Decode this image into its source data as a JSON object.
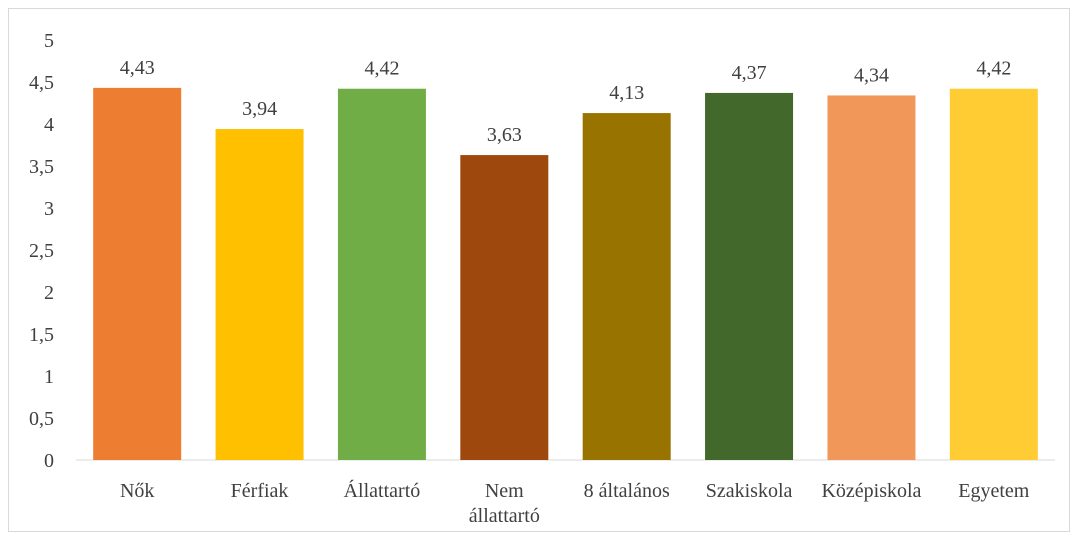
{
  "chart_data": {
    "type": "bar",
    "title": "",
    "xlabel": "",
    "ylabel": "",
    "ylim": [
      0,
      5
    ],
    "yticks": [
      "0",
      "0,5",
      "1",
      "1,5",
      "2",
      "2,5",
      "3",
      "3,5",
      "4",
      "4,5",
      "5"
    ],
    "grid": false,
    "legend": "none",
    "categories": [
      [
        "Nők"
      ],
      [
        "Férfiak"
      ],
      [
        "Állattartó"
      ],
      [
        "Nem",
        "állattartó"
      ],
      [
        "8 általános"
      ],
      [
        "Szakiskola"
      ],
      [
        "Középiskola"
      ],
      [
        "Egyetem"
      ]
    ],
    "values": [
      4.43,
      3.94,
      4.42,
      3.63,
      4.13,
      4.37,
      4.34,
      4.42
    ],
    "value_labels": [
      "4,43",
      "3,94",
      "4,42",
      "3,63",
      "4,13",
      "4,37",
      "4,34",
      "4,42"
    ],
    "colors": [
      "#ED7D31",
      "#FFC000",
      "#70AD47",
      "#9E480E",
      "#997300",
      "#43682B",
      "#F1975A",
      "#FFCD33"
    ]
  }
}
